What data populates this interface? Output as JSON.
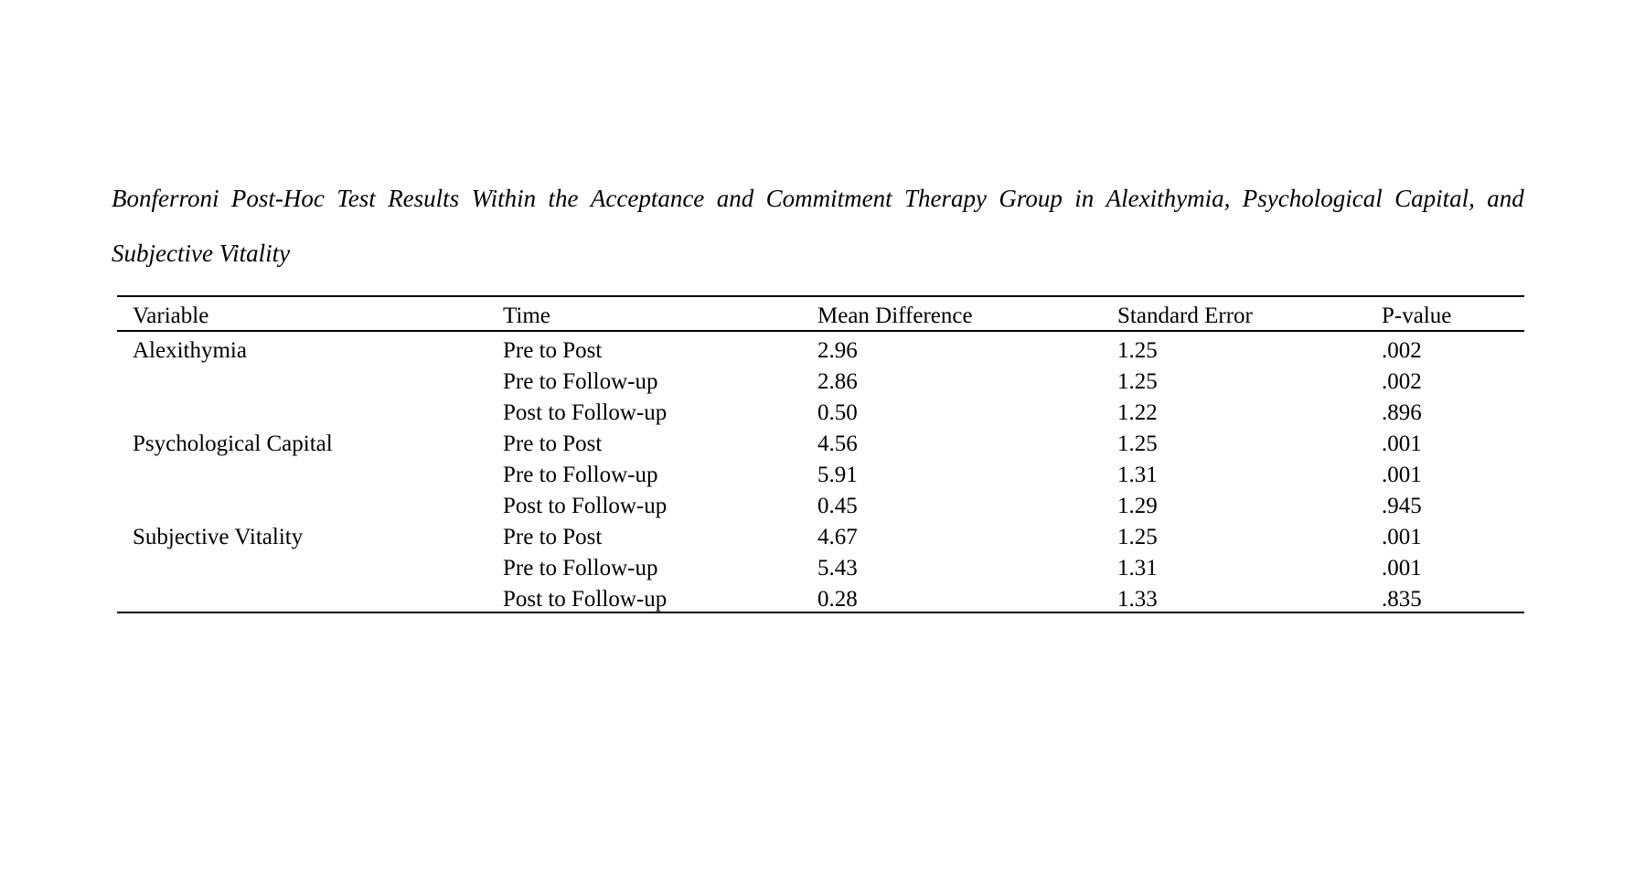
{
  "page": {
    "background": "#ffffff",
    "text_color": "#000000",
    "rule_color": "#000000"
  },
  "document": {
    "title_line1": "Bonferroni Post-Hoc Test Results Within the Acceptance and Commitment Therapy Group in Alexithymia, Psychological Capital, and",
    "title_line2": "Subjective Vitality"
  },
  "table": {
    "columns": [
      "Variable",
      "Time",
      "Mean Difference",
      "Standard Error",
      "P-value"
    ],
    "rows": [
      {
        "variable": "Alexithymia",
        "time": "Pre to Post",
        "mean_difference": "2.96",
        "standard_error": "1.25",
        "p_value": ".002"
      },
      {
        "variable": "",
        "time": "Pre to Follow-up",
        "mean_difference": "2.86",
        "standard_error": "1.25",
        "p_value": ".002"
      },
      {
        "variable": "",
        "time": "Post to Follow-up",
        "mean_difference": "0.50",
        "standard_error": "1.22",
        "p_value": ".896"
      },
      {
        "variable": "Psychological Capital",
        "time": "Pre to Post",
        "mean_difference": "4.56",
        "standard_error": "1.25",
        "p_value": ".001"
      },
      {
        "variable": "",
        "time": "Pre to Follow-up",
        "mean_difference": "5.91",
        "standard_error": "1.31",
        "p_value": ".001"
      },
      {
        "variable": "",
        "time": "Post to Follow-up",
        "mean_difference": "0.45",
        "standard_error": "1.29",
        "p_value": ".945"
      },
      {
        "variable": "Subjective Vitality",
        "time": "Pre to Post",
        "mean_difference": "4.67",
        "standard_error": "1.25",
        "p_value": ".001"
      },
      {
        "variable": "",
        "time": "Pre to Follow-up",
        "mean_difference": "5.43",
        "standard_error": "1.31",
        "p_value": ".001"
      },
      {
        "variable": "",
        "time": "Post to Follow-up",
        "mean_difference": "0.28",
        "standard_error": "1.33",
        "p_value": ".835"
      }
    ]
  }
}
